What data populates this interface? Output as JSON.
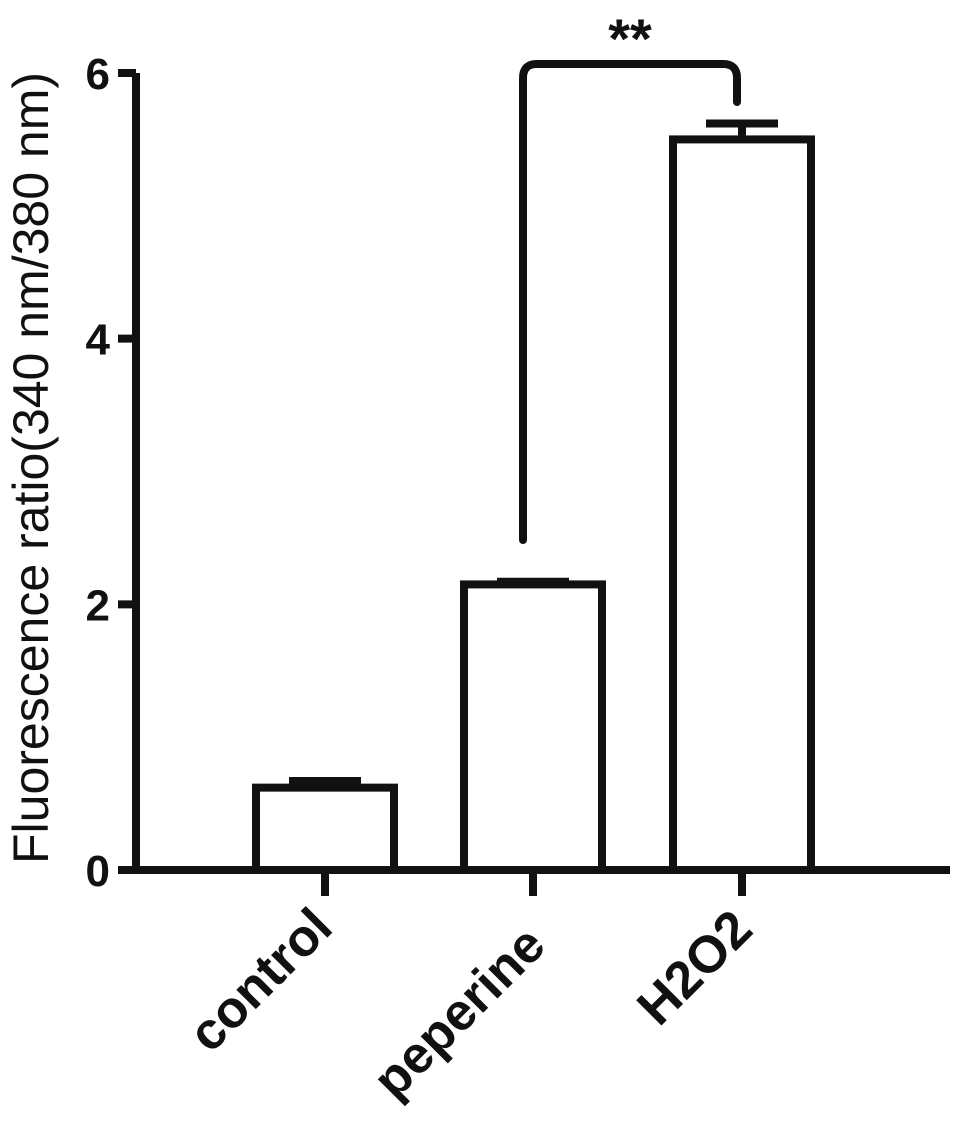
{
  "chart_data": {
    "type": "bar",
    "title": "",
    "xlabel": "",
    "ylabel": "Fluorescence ratio(340 nm/380 nm)",
    "ylim": [
      0,
      6
    ],
    "yticks": [
      0,
      2,
      4,
      6
    ],
    "ytick_labels": [
      "0",
      "2",
      "4",
      "6"
    ],
    "categories": [
      "control",
      "peperine",
      "H2O2"
    ],
    "values": [
      0.62,
      2.15,
      5.5
    ],
    "errors": [
      0.05,
      0.02,
      0.12
    ],
    "significance": {
      "label": "**",
      "from": "peperine",
      "to": "H2O2"
    },
    "grid": false,
    "legend": "none",
    "bar_fill": "#ffffff",
    "stroke_color": "#111111"
  }
}
